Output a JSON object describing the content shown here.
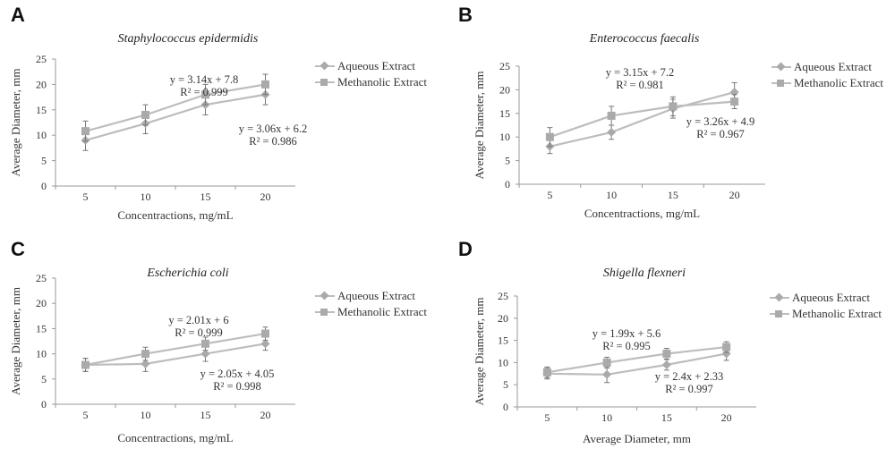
{
  "chart_data": [
    {
      "id": "A",
      "panel_label": "A",
      "type": "line",
      "title": "Staphylococcus epidermidis",
      "xlabel": "Concentractions, mg/mL",
      "ylabel": "Average Diameter, mm",
      "categories": [
        "5",
        "10",
        "15",
        "20"
      ],
      "ylim": [
        0,
        25
      ],
      "yticks": [
        "0",
        "5",
        "10",
        "15",
        "20",
        "25"
      ],
      "series": [
        {
          "name": "Aqueous Extract",
          "marker": "diamond",
          "values": [
            9,
            12.3,
            16,
            18
          ],
          "errors": [
            2,
            2,
            2,
            2
          ]
        },
        {
          "name": "Methanolic Extract",
          "marker": "square",
          "values": [
            10.8,
            14,
            18,
            20
          ],
          "errors": [
            2,
            2,
            2,
            2
          ]
        }
      ],
      "annotations": [
        {
          "line1": "y = 3.14x + 7.8",
          "line2": "R² = 0.999"
        },
        {
          "line1": "y = 3.06x + 6.2",
          "line2": "R² = 0.986"
        }
      ],
      "legend_position": "right",
      "grid": false
    },
    {
      "id": "B",
      "panel_label": "B",
      "type": "line",
      "title": "Enterococcus faecalis",
      "xlabel": "Concentractions, mg/mL",
      "ylabel": "Average Diameter, mm",
      "categories": [
        "5",
        "10",
        "15",
        "20"
      ],
      "ylim": [
        0,
        25
      ],
      "yticks": [
        "0",
        "5",
        "10",
        "15",
        "20",
        "25"
      ],
      "series": [
        {
          "name": "Aqueous Extract",
          "marker": "diamond",
          "values": [
            8,
            11,
            16,
            19.5
          ],
          "errors": [
            1.5,
            1.5,
            2,
            2
          ]
        },
        {
          "name": "Methanolic Extract",
          "marker": "square",
          "values": [
            10,
            14.5,
            16.5,
            17.5
          ],
          "errors": [
            2,
            2,
            2,
            1.5
          ]
        }
      ],
      "annotations": [
        {
          "line1": "y = 3.15x + 7.2",
          "line2": "R² = 0.981"
        },
        {
          "line1": "y = 3.26x + 4.9",
          "line2": "R² = 0.967"
        }
      ],
      "legend_position": "right",
      "grid": false
    },
    {
      "id": "C",
      "panel_label": "C",
      "type": "line",
      "title": "Escherichia coli",
      "xlabel": "Concentractions, mg/mL",
      "ylabel": "Average Diameter, mm",
      "categories": [
        "5",
        "10",
        "15",
        "20"
      ],
      "ylim": [
        0,
        25
      ],
      "yticks": [
        "0",
        "5",
        "10",
        "15",
        "20",
        "25"
      ],
      "series": [
        {
          "name": "Aqueous Extract",
          "marker": "diamond",
          "values": [
            7.8,
            8,
            10,
            12
          ],
          "errors": [
            1.3,
            1.5,
            1.5,
            1.3
          ]
        },
        {
          "name": "Methanolic Extract",
          "marker": "square",
          "values": [
            7.8,
            10,
            12,
            14
          ],
          "errors": [
            1.3,
            1.3,
            1.3,
            1.3
          ]
        }
      ],
      "annotations": [
        {
          "line1": "y = 2.01x + 6",
          "line2": "R² = 0.999"
        },
        {
          "line1": "y = 2.05x + 4.05",
          "line2": "R² = 0.998"
        }
      ],
      "legend_position": "right",
      "grid": false
    },
    {
      "id": "D",
      "panel_label": "D",
      "type": "line",
      "title": "Shigella flexneri",
      "xlabel": "Average Diameter, mm",
      "ylabel": "Average Diameter, mm",
      "categories": [
        "5",
        "10",
        "15",
        "20"
      ],
      "ylim": [
        0,
        25
      ],
      "yticks": [
        "0",
        "5",
        "10",
        "15",
        "20",
        "25"
      ],
      "series": [
        {
          "name": "Aqueous Extract",
          "marker": "diamond",
          "values": [
            7.5,
            7.3,
            9.5,
            12
          ],
          "errors": [
            1.2,
            1.8,
            1.2,
            1.5
          ]
        },
        {
          "name": "Methanolic Extract",
          "marker": "square",
          "values": [
            7.8,
            10,
            12,
            13.5
          ],
          "errors": [
            1.2,
            1.2,
            1.2,
            1.2
          ]
        }
      ],
      "annotations": [
        {
          "line1": "y = 1.99x + 5.6",
          "line2": "R² = 0.995"
        },
        {
          "line1": "y = 2.4x + 2.33",
          "line2": "R² = 0.997"
        }
      ],
      "legend_position": "right",
      "grid": false
    }
  ],
  "colors": {
    "series_line": "#bdbdbd",
    "marker": "#aaaaaa",
    "error_bar": "#777777",
    "axis": "#999999",
    "text": "#333333"
  }
}
